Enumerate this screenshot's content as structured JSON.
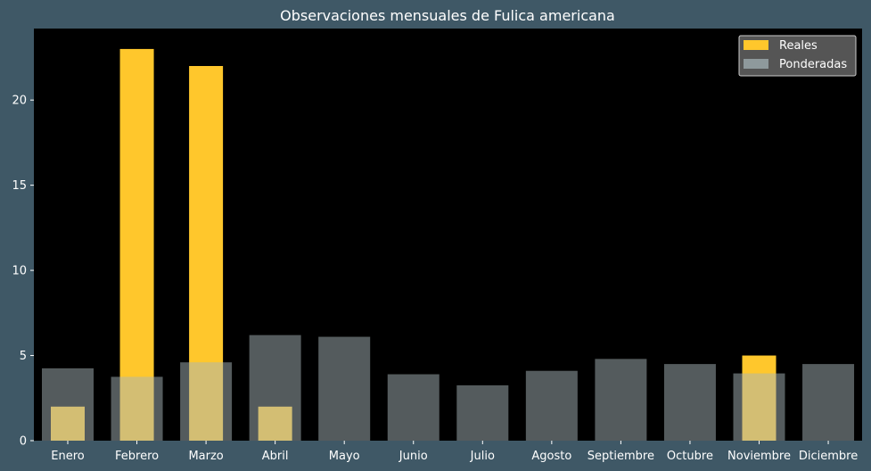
{
  "chart_data": {
    "type": "bar",
    "title": "Observaciones mensuales de Fulica americana",
    "xlabel": "",
    "ylabel": "",
    "categories": [
      "Enero",
      "Febrero",
      "Marzo",
      "Abril",
      "Mayo",
      "Junio",
      "Julio",
      "Agosto",
      "Septiembre",
      "Octubre",
      "Noviembre",
      "Diciembre"
    ],
    "series": [
      {
        "name": "Reales",
        "values": [
          2,
          23,
          22,
          2,
          0,
          0,
          0,
          0,
          0,
          0,
          5,
          0
        ],
        "color": "#ffc72c"
      },
      {
        "name": "Ponderadas",
        "values": [
          4.25,
          3.75,
          4.6,
          6.2,
          6.1,
          3.9,
          3.25,
          4.1,
          4.8,
          4.5,
          3.95,
          4.5
        ],
        "color": "#a7b6ba"
      }
    ],
    "ylim": [
      0,
      24.2
    ],
    "yticks": [
      0,
      5,
      10,
      15,
      20
    ],
    "legend_position": "top-right",
    "grid": false,
    "colors": {
      "background": "#3f5866",
      "plot_background": "#000000",
      "text": "#ffffff"
    }
  }
}
